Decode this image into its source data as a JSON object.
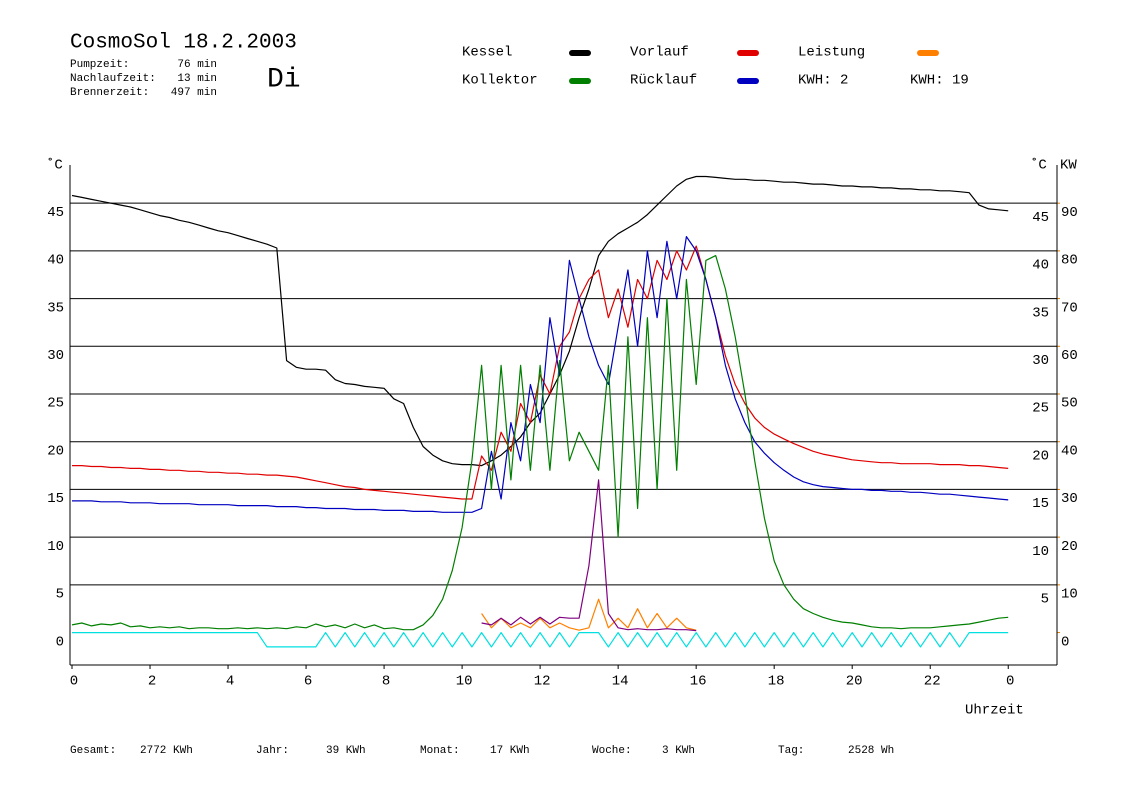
{
  "chart_data": {
    "type": "line",
    "title": "CosmoSol 18.2.2003",
    "day_label": "Di",
    "day_color": "#0000c0",
    "info": [
      {
        "label": "Pumpzeit:",
        "value": "76 min"
      },
      {
        "label": "Nachlaufzeit:",
        "value": "13 min"
      },
      {
        "label": "Brennerzeit:",
        "value": "497 min"
      }
    ],
    "kwh_labels": [
      {
        "text": "KWH: 2",
        "color": "#e08000"
      },
      {
        "text": "KWH: 19",
        "color": "#800080"
      }
    ],
    "totals": [
      {
        "label": "Gesamt:",
        "value": "2772 KWh"
      },
      {
        "label": "Jahr:",
        "value": "39 KWh"
      },
      {
        "label": "Monat:",
        "value": "17 KWh"
      },
      {
        "label": "Woche:",
        "value": "3 KWh"
      },
      {
        "label": "Tag:",
        "value": "2528 Wh"
      }
    ],
    "ylabel": "˚C",
    "y2label": "KW",
    "xlabel": "Uhrzeit",
    "xlim": [
      0,
      25.25
    ],
    "xticks": [
      0,
      2,
      4,
      6,
      8,
      10,
      12,
      14,
      16,
      18,
      20,
      22,
      {
        "value": 24,
        "label": "0"
      }
    ],
    "ylim": [
      -3.4,
      49
    ],
    "yticks": [
      0,
      5,
      10,
      15,
      20,
      25,
      30,
      35,
      40,
      45
    ],
    "y2lim": [
      -6.8,
      98
    ],
    "y2ticks": [
      0,
      10,
      20,
      30,
      40,
      50,
      60,
      70,
      80,
      90
    ],
    "y2color": "#e08000",
    "grid": true,
    "x": [
      0,
      0.25,
      0.5,
      0.75,
      1,
      1.25,
      1.5,
      1.75,
      2,
      2.25,
      2.5,
      2.75,
      3,
      3.25,
      3.5,
      3.75,
      4,
      4.25,
      4.5,
      4.75,
      5,
      5.25,
      5.5,
      5.75,
      6,
      6.25,
      6.5,
      6.75,
      7,
      7.25,
      7.5,
      7.75,
      8,
      8.25,
      8.5,
      8.75,
      9,
      9.25,
      9.5,
      9.75,
      10,
      10.25,
      10.5,
      10.75,
      11,
      11.25,
      11.5,
      11.75,
      12,
      12.25,
      12.5,
      12.75,
      13,
      13.25,
      13.5,
      13.75,
      14,
      14.25,
      14.5,
      14.75,
      15,
      15.25,
      15.5,
      15.75,
      16,
      16.25,
      16.5,
      16.75,
      17,
      17.25,
      17.5,
      17.75,
      18,
      18.25,
      18.5,
      18.75,
      19,
      19.25,
      19.5,
      19.75,
      20,
      20.25,
      20.5,
      20.75,
      21,
      21.25,
      21.5,
      21.75,
      22,
      22.25,
      22.5,
      22.75,
      23,
      23.25,
      23.5,
      23.75,
      24
    ],
    "series": [
      {
        "name": "Kessel",
        "color": "#000000",
        "values": [
          45.8,
          45.6,
          45.4,
          45.2,
          45.0,
          44.8,
          44.6,
          44.3,
          44.0,
          43.7,
          43.5,
          43.2,
          43.0,
          42.7,
          42.4,
          42.1,
          41.9,
          41.6,
          41.3,
          41.0,
          40.7,
          40.3,
          28.5,
          27.8,
          27.6,
          27.6,
          27.5,
          26.5,
          26.1,
          26.0,
          25.8,
          25.7,
          25.6,
          24.5,
          24.0,
          21.5,
          19.5,
          18.6,
          18.0,
          17.7,
          17.6,
          17.6,
          17.5,
          18.0,
          18.6,
          19.5,
          20.5,
          22.0,
          23.0,
          25.0,
          27.0,
          29.5,
          33.0,
          36.0,
          39.5,
          41.0,
          41.8,
          42.4,
          43.0,
          43.8,
          44.8,
          45.8,
          46.8,
          47.5,
          47.8,
          47.8,
          47.7,
          47.6,
          47.5,
          47.5,
          47.4,
          47.4,
          47.3,
          47.2,
          47.2,
          47.1,
          47.0,
          47.0,
          46.9,
          46.8,
          46.8,
          46.7,
          46.7,
          46.6,
          46.6,
          46.5,
          46.5,
          46.4,
          46.4,
          46.3,
          46.3,
          46.2,
          46.1,
          44.8,
          44.4,
          44.3,
          44.2
        ]
      },
      {
        "name": "Kollektor",
        "color": "#007f00",
        "values": [
          0.8,
          1.0,
          0.7,
          0.9,
          0.8,
          1.0,
          0.6,
          0.7,
          0.5,
          0.6,
          0.5,
          0.6,
          0.4,
          0.5,
          0.5,
          0.4,
          0.4,
          0.5,
          0.4,
          0.5,
          0.4,
          0.5,
          0.4,
          0.6,
          0.5,
          0.9,
          0.6,
          0.8,
          0.5,
          0.9,
          0.5,
          0.8,
          0.4,
          0.5,
          0.3,
          0.3,
          0.8,
          1.8,
          3.5,
          6.5,
          11.0,
          18.0,
          28.0,
          15.0,
          28.0,
          16.0,
          28.0,
          17.0,
          28.0,
          17.0,
          28.5,
          18.0,
          21.0,
          19.0,
          17.0,
          28.0,
          10.0,
          31.0,
          13.0,
          33.0,
          15.0,
          35.0,
          17.0,
          37.0,
          26.0,
          39.0,
          39.5,
          36.0,
          31.0,
          25.0,
          18.0,
          12.0,
          7.5,
          5.0,
          3.5,
          2.5,
          2.0,
          1.6,
          1.3,
          1.1,
          1.0,
          0.8,
          0.6,
          0.5,
          0.5,
          0.4,
          0.5,
          0.5,
          0.5,
          0.6,
          0.7,
          0.8,
          0.9,
          1.1,
          1.3,
          1.5,
          1.6
        ]
      },
      {
        "name": "Vorlauf",
        "color": "#e00000",
        "values": [
          17.5,
          17.5,
          17.4,
          17.4,
          17.3,
          17.3,
          17.2,
          17.2,
          17.1,
          17.1,
          17.0,
          17.0,
          16.9,
          16.9,
          16.8,
          16.8,
          16.7,
          16.7,
          16.6,
          16.6,
          16.5,
          16.5,
          16.4,
          16.3,
          16.1,
          15.9,
          15.7,
          15.5,
          15.3,
          15.2,
          15.0,
          14.9,
          14.8,
          14.7,
          14.6,
          14.5,
          14.4,
          14.3,
          14.2,
          14.1,
          14.0,
          14.0,
          18.5,
          17.0,
          21.0,
          19.0,
          24.0,
          22.0,
          27.0,
          25.0,
          30.0,
          31.5,
          35.0,
          37.0,
          38.0,
          33.0,
          36.0,
          32.0,
          37.0,
          35.0,
          39.0,
          37.0,
          40.0,
          38.0,
          40.5,
          37.0,
          33.0,
          29.0,
          26.0,
          24.0,
          22.5,
          21.5,
          20.8,
          20.3,
          19.8,
          19.4,
          19.0,
          18.7,
          18.5,
          18.3,
          18.1,
          18.0,
          17.9,
          17.8,
          17.8,
          17.7,
          17.7,
          17.7,
          17.7,
          17.6,
          17.6,
          17.6,
          17.5,
          17.5,
          17.4,
          17.3,
          17.2
        ]
      },
      {
        "name": "Rücklauf",
        "color": "#0000c0",
        "values": [
          13.8,
          13.8,
          13.8,
          13.7,
          13.7,
          13.7,
          13.6,
          13.6,
          13.6,
          13.5,
          13.5,
          13.5,
          13.5,
          13.4,
          13.4,
          13.4,
          13.4,
          13.3,
          13.3,
          13.3,
          13.3,
          13.2,
          13.2,
          13.2,
          13.1,
          13.1,
          13.0,
          13.0,
          13.0,
          12.9,
          12.9,
          12.9,
          12.8,
          12.8,
          12.8,
          12.7,
          12.7,
          12.7,
          12.6,
          12.6,
          12.6,
          12.6,
          13.0,
          19.0,
          14.0,
          22.0,
          18.0,
          26.0,
          22.0,
          33.0,
          27.0,
          39.0,
          35.0,
          31.0,
          28.0,
          26.0,
          32.0,
          38.0,
          30.0,
          40.0,
          33.0,
          41.0,
          35.0,
          41.5,
          40.0,
          37.0,
          33.0,
          28.0,
          24.5,
          22.0,
          20.0,
          18.8,
          17.8,
          17.0,
          16.3,
          15.8,
          15.5,
          15.3,
          15.2,
          15.1,
          15.0,
          15.0,
          14.9,
          14.9,
          14.8,
          14.8,
          14.7,
          14.7,
          14.6,
          14.5,
          14.5,
          14.4,
          14.3,
          14.2,
          14.1,
          14.0,
          13.9
        ]
      },
      {
        "name": "Leistung",
        "color": "#ff8000",
        "axis": "y2",
        "values": [
          null,
          null,
          null,
          null,
          null,
          null,
          null,
          null,
          null,
          null,
          null,
          null,
          null,
          null,
          null,
          null,
          null,
          null,
          null,
          null,
          null,
          null,
          null,
          null,
          null,
          null,
          null,
          null,
          null,
          null,
          null,
          null,
          null,
          null,
          null,
          null,
          null,
          null,
          null,
          null,
          null,
          null,
          4,
          1,
          3,
          1,
          2,
          1,
          3,
          1,
          2,
          1,
          0.5,
          1,
          7,
          1,
          3,
          1,
          5,
          1,
          4,
          1,
          3,
          1,
          0.5,
          null,
          null,
          null,
          null,
          null,
          null,
          null,
          null,
          null,
          null,
          null,
          null,
          null,
          null,
          null,
          null,
          null,
          null,
          null,
          null,
          null,
          null,
          null,
          null,
          null,
          null,
          null,
          null,
          null,
          null,
          null,
          null
        ]
      },
      {
        "color": "#800080",
        "values": [
          null,
          null,
          null,
          null,
          null,
          null,
          null,
          null,
          null,
          null,
          null,
          null,
          null,
          null,
          null,
          null,
          null,
          null,
          null,
          null,
          null,
          null,
          null,
          null,
          null,
          null,
          null,
          null,
          null,
          null,
          null,
          null,
          null,
          null,
          null,
          null,
          null,
          null,
          null,
          null,
          null,
          null,
          1.0,
          0.8,
          1.5,
          0.8,
          1.6,
          0.9,
          1.6,
          0.9,
          1.6,
          1.5,
          1.5,
          7.0,
          16.0,
          2.0,
          0.5,
          0.3,
          0.4,
          0.3,
          0.3,
          0.4,
          0.3,
          0.3,
          0.2,
          null,
          null,
          null,
          null,
          null,
          null,
          null,
          null,
          null,
          null,
          null,
          null,
          null,
          null,
          null,
          null,
          null,
          null,
          null,
          null,
          null,
          null,
          null,
          null,
          null,
          null,
          null,
          null,
          null,
          null,
          null,
          null
        ]
      },
      {
        "color": "#00e0e0",
        "values": [
          0,
          0,
          0,
          0,
          0,
          0,
          0,
          0,
          0,
          0,
          0,
          0,
          0,
          0,
          0,
          0,
          0,
          0,
          0,
          0,
          -1.5,
          -1.5,
          -1.5,
          -1.5,
          -1.5,
          -1.5,
          0,
          -1.5,
          0,
          -1.5,
          0,
          -1.5,
          0,
          -1.5,
          0,
          -1.5,
          0,
          -1.5,
          0,
          -1.5,
          0,
          -1.5,
          0,
          -1.5,
          0,
          -1.5,
          0,
          -1.5,
          0,
          -1.5,
          0,
          -1.5,
          0,
          0,
          0,
          -1.5,
          0,
          -1.5,
          0,
          -1.5,
          0,
          -1.5,
          0,
          -1.5,
          0,
          -1.5,
          0,
          -1.5,
          0,
          -1.5,
          0,
          -1.5,
          0,
          -1.5,
          0,
          -1.5,
          0,
          -1.5,
          0,
          -1.5,
          0,
          -1.5,
          0,
          -1.5,
          0,
          -1.5,
          0,
          -1.5,
          0,
          -1.5,
          0,
          -1.5,
          0,
          0,
          0,
          0,
          0
        ]
      }
    ]
  }
}
